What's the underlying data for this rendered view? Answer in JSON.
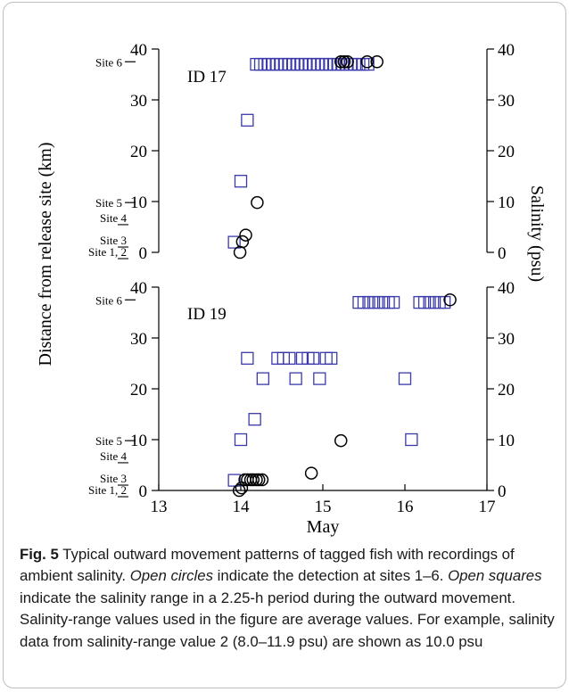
{
  "chart_data": {
    "type": "scatter",
    "xlabel": "May",
    "xlim": [
      13,
      17
    ],
    "x_ticks": [
      "13",
      "14",
      "15",
      "16",
      "17"
    ],
    "ylabel_left": "Distance from release site (km)",
    "ylabel_right": "Salinity (psu)",
    "ylim": [
      0,
      40
    ],
    "y_ticks": [
      "0",
      "10",
      "20",
      "30",
      "40"
    ],
    "site_labels": [
      {
        "label": "Site 6",
        "y": 37.5
      },
      {
        "label": "Site 5",
        "y": 9.8
      },
      {
        "label": "Site 4",
        "y": 4.4
      },
      {
        "label": "Site 3",
        "y": 2.1
      },
      {
        "label": "Site 1, 2",
        "y": 0
      }
    ],
    "panels": [
      {
        "id": "ID 17",
        "series": [
          {
            "marker": "square",
            "x": [
              13.92,
              14.0,
              14.08,
              14.19,
              14.24,
              14.29,
              14.34,
              14.39,
              14.44,
              14.49,
              14.54,
              14.59,
              14.64,
              14.69,
              14.74,
              14.79,
              14.84,
              14.89,
              14.94,
              14.99,
              15.04,
              15.09,
              15.14,
              15.19,
              15.24,
              15.29,
              15.34,
              15.39,
              15.44,
              15.49,
              15.55
            ],
            "y": [
              2,
              14,
              26,
              37,
              37,
              37,
              37,
              37,
              37,
              37,
              37,
              37,
              37,
              37,
              37,
              37,
              37,
              37,
              37,
              37,
              37,
              37,
              37,
              37,
              37,
              37,
              37,
              37,
              37,
              37,
              37
            ]
          },
          {
            "marker": "circle",
            "x": [
              13.99,
              14.02,
              14.06,
              14.2,
              15.22,
              15.26,
              15.3,
              15.54,
              15.66
            ],
            "y": [
              0,
              2.1,
              3.4,
              9.8,
              37.5,
              37.5,
              37.5,
              37.5,
              37.5
            ]
          }
        ]
      },
      {
        "id": "ID 19",
        "series": [
          {
            "marker": "square",
            "x": [
              13.92,
              14.0,
              14.08,
              14.17,
              14.27,
              14.45,
              14.52,
              14.59,
              14.67,
              14.75,
              14.82,
              14.88,
              14.96,
              15.04,
              15.1,
              15.44,
              15.5,
              15.56,
              15.62,
              15.68,
              15.74,
              15.8,
              15.86,
              16.0,
              16.08,
              16.18,
              16.24,
              16.3,
              16.36,
              16.42,
              16.48
            ],
            "y": [
              2,
              10,
              26,
              14,
              22,
              26,
              26,
              26,
              22,
              26,
              26,
              26,
              22,
              26,
              26,
              37,
              37,
              37,
              37,
              37,
              37,
              37,
              37,
              22,
              10,
              37,
              37,
              37,
              37,
              37,
              37
            ]
          },
          {
            "marker": "circle",
            "x": [
              13.98,
              14.01,
              14.05,
              14.08,
              14.12,
              14.15,
              14.19,
              14.22,
              14.26,
              14.86,
              15.22,
              16.55
            ],
            "y": [
              0,
              0.5,
              2.1,
              2.1,
              2.1,
              2.1,
              2.1,
              2.1,
              2.1,
              3.4,
              9.8,
              37.5
            ]
          }
        ]
      }
    ]
  },
  "caption": {
    "label": "Fig. 5",
    "t1": "  Typical outward movement patterns of tagged fish with recordings of ambient salinity. ",
    "em1": "Open circles",
    "t2": " indicate the detection at sites 1–6. ",
    "em2": "Open squares",
    "t3": " indicate the salinity range in a 2.25-h period during the outward movement. Salinity-range values used in the figure are average values. For example, salinity data from salinity-range value 2 (8.0–11.9 psu) are shown as 10.0 psu"
  },
  "colors": {
    "square": "#3a3aaa",
    "circle": "#000000",
    "axis": "#000000"
  }
}
